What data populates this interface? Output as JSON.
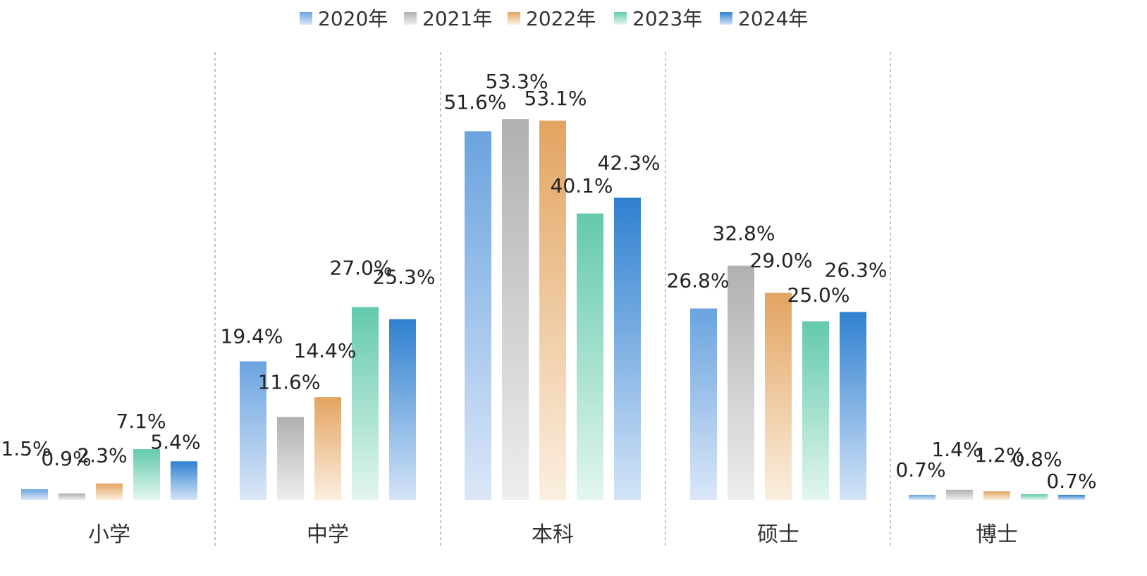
{
  "chart_data": {
    "type": "bar",
    "title": "",
    "xlabel": "",
    "ylabel": "",
    "ylim": [
      0,
      55
    ],
    "grid": false,
    "legend_position": "top-center",
    "categories": [
      "小学",
      "中学",
      "本科",
      "硕士",
      "博士"
    ],
    "series": [
      {
        "name": "2020年",
        "values": [
          1.5,
          19.4,
          51.6,
          26.8,
          0.7
        ],
        "labels": [
          "1.5%",
          "19.4%",
          "51.6%",
          "26.8%",
          "0.7%"
        ],
        "color": "#6aa3df",
        "color_light": "#dbe7f7"
      },
      {
        "name": "2021年",
        "values": [
          0.9,
          11.6,
          53.3,
          32.8,
          1.4
        ],
        "labels": [
          "0.9%",
          "11.6%",
          "53.3%",
          "32.8%",
          "1.4%"
        ],
        "color": "#b0b0b0",
        "color_light": "#eeeeee"
      },
      {
        "name": "2022年",
        "values": [
          2.3,
          14.4,
          53.1,
          29.0,
          1.2
        ],
        "labels": [
          "2.3%",
          "14.4%",
          "53.1%",
          "29.0%",
          "1.2%"
        ],
        "color": "#e2a461",
        "color_light": "#fbefe0"
      },
      {
        "name": "2023年",
        "values": [
          7.1,
          27.0,
          40.1,
          25.0,
          0.8
        ],
        "labels": [
          "7.1%",
          "27.0%",
          "40.1%",
          "25.0%",
          "0.8%"
        ],
        "color": "#63c9ad",
        "color_light": "#e3f6ef"
      },
      {
        "name": "2024年",
        "values": [
          5.4,
          25.3,
          42.3,
          26.3,
          0.7
        ],
        "labels": [
          "5.4%",
          "25.3%",
          "42.3%",
          "26.3%",
          "0.7%"
        ],
        "color": "#2f80d0",
        "color_light": "#d4e4f7"
      }
    ]
  }
}
